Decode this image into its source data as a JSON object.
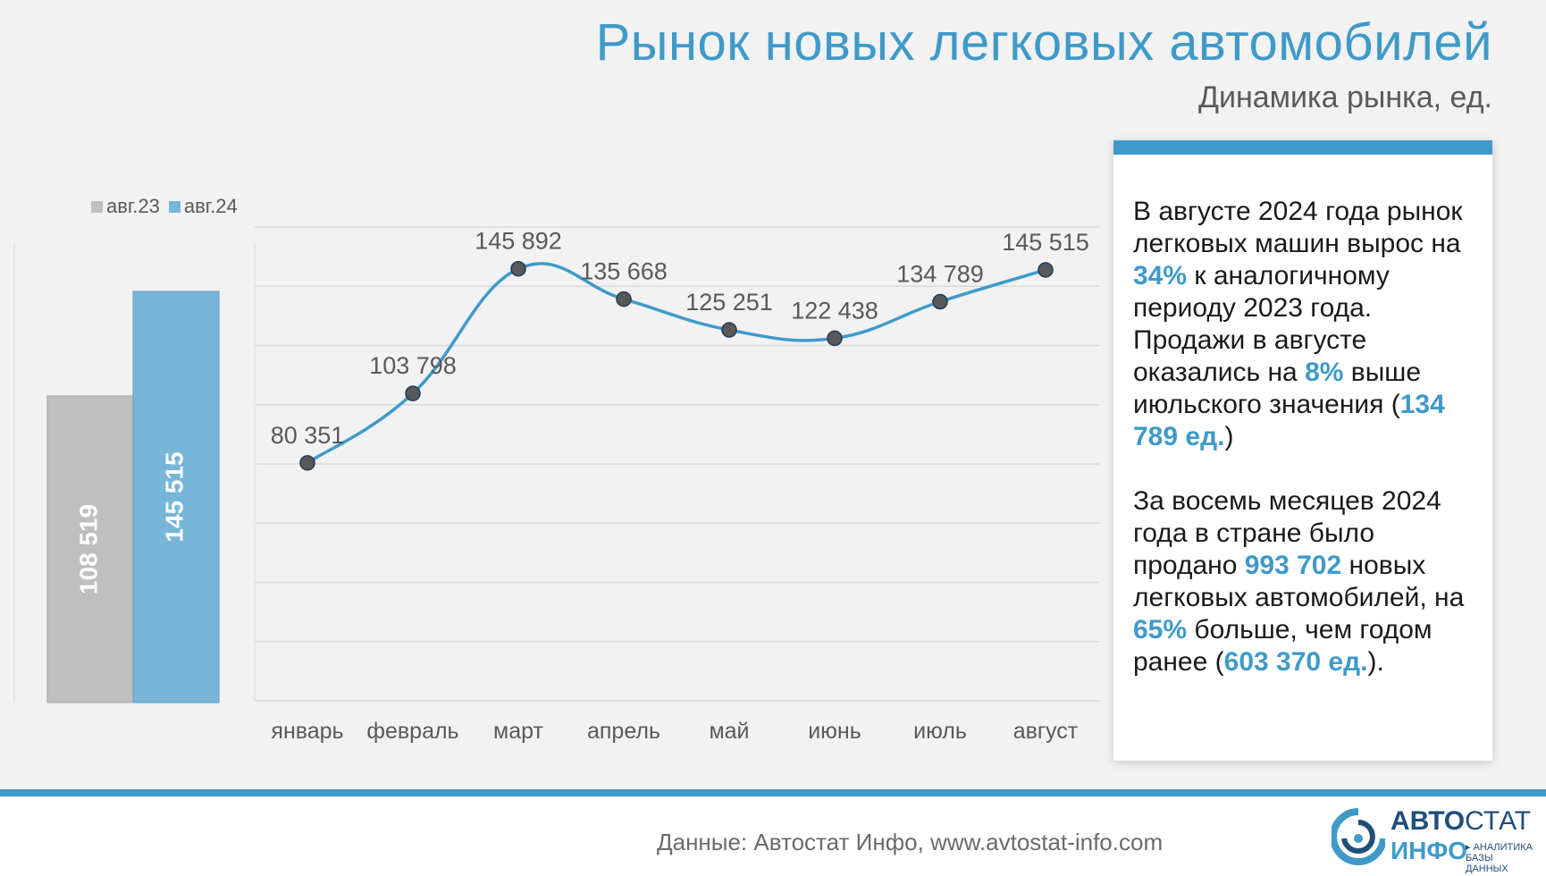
{
  "title": "Рынок новых легковых автомобилей",
  "subtitle": "Динамика рынка, ед.",
  "colors": {
    "accent": "#3f9ac9",
    "bar_2023": "#bfbfbf",
    "bar_2024": "#77b5d9",
    "line": "#3f9ac9",
    "marker": "#595959"
  },
  "chart_data": [
    {
      "type": "bar",
      "legend_position": "top-left",
      "categories": [
        ""
      ],
      "series": [
        {
          "name": "авг.23",
          "values": [
            108519
          ],
          "label": "108 519",
          "color": "#bfbfbf"
        },
        {
          "name": "авг.24",
          "values": [
            145515
          ],
          "label": "145 515",
          "color": "#77b5d9"
        }
      ],
      "ylim": [
        0,
        155000
      ]
    },
    {
      "type": "line",
      "categories": [
        "январь",
        "февраль",
        "март",
        "апрель",
        "май",
        "июнь",
        "июль",
        "август"
      ],
      "series": [
        {
          "values": [
            80351,
            103798,
            145892,
            135668,
            125251,
            122438,
            134789,
            145515
          ],
          "labels": [
            "80 351",
            "103 798",
            "145 892",
            "135 668",
            "125 251",
            "122 438",
            "134 789",
            "145 515"
          ]
        }
      ],
      "ylim": [
        0,
        160000
      ],
      "grid": true
    }
  ],
  "info": {
    "p1": [
      {
        "text": "В августе 2024 года рынок легковых машин вырос на ",
        "hl": false
      },
      {
        "text": "34%",
        "hl": true
      },
      {
        "text": " к аналогичному периоду 2023 года. Продажи в августе оказались на ",
        "hl": false
      },
      {
        "text": "8%",
        "hl": true
      },
      {
        "text": " выше июльского значения (",
        "hl": false
      },
      {
        "text": "134 789 ед.",
        "hl": true
      },
      {
        "text": ")",
        "hl": false
      }
    ],
    "p2": [
      {
        "text": "За восемь месяцев 2024 года в стране было продано ",
        "hl": false
      },
      {
        "text": "993 702",
        "hl": true
      },
      {
        "text": " новых легковых автомобилей, на ",
        "hl": false
      },
      {
        "text": "65%",
        "hl": true
      },
      {
        "text": " больше, чем годом ранее (",
        "hl": false
      },
      {
        "text": "603 370 ед.",
        "hl": true
      },
      {
        "text": ").",
        "hl": false
      }
    ]
  },
  "footer": {
    "source": "Данные: Автостат Инфо, www.avtostat-info.com",
    "logo_line1_bold": "АВТО",
    "logo_line1_thin": "СТАТ",
    "logo_line2": "ИНФО",
    "logo_tagline": "▸ АНАЛИТИКА БАЗЫ ДАННЫХ"
  }
}
